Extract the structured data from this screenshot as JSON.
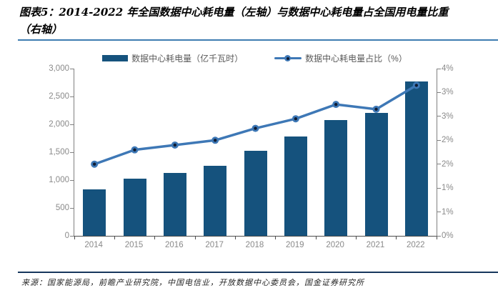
{
  "title": {
    "line1": "图表5：2014-2022 年全国数据中心耗电量（左轴）与数据中心耗电量占全国用电量比重",
    "line2": "（右轴）"
  },
  "legend": [
    {
      "swatch": "bar-swatch",
      "label": "数据中心耗电量（亿千瓦时）",
      "color": "#15527D"
    },
    {
      "swatch": "line-swatch",
      "label": "数据中心耗电量占比（%）",
      "color": "#3E78B6"
    }
  ],
  "source": "来源：国家能源局，前瞻产业研究院，中国电信业，开放数据中心委员会，国金证券研究所",
  "colors": {
    "bar": "#15527D",
    "line": "#3E78B6",
    "marker_center": "#0F1C33",
    "title_rule": "#3E7CB1",
    "footer_rule": "#17375D",
    "axis_text": "#8a8a8a"
  },
  "chart_data": {
    "type": "bar",
    "subtype": "bar+line dual axis",
    "categories": [
      "2014",
      "2015",
      "2016",
      "2017",
      "2018",
      "2019",
      "2020",
      "2021",
      "2022"
    ],
    "series": [
      {
        "name": "数据中心耗电量（亿千瓦时）",
        "type": "bar",
        "axis": "left",
        "values": [
          830,
          1020,
          1130,
          1260,
          1530,
          1780,
          2080,
          2200,
          2770
        ]
      },
      {
        "name": "数据中心耗电量占比（%）",
        "type": "line",
        "axis": "right",
        "values": [
          1.5,
          1.8,
          1.9,
          2.0,
          2.25,
          2.45,
          2.75,
          2.65,
          3.15
        ]
      }
    ],
    "left_axis": {
      "min": 0,
      "max": 3000,
      "tick_step": 500,
      "tick_labels": [
        "0",
        "500",
        "1,000",
        "1,500",
        "2,000",
        "2,500",
        "3,000"
      ]
    },
    "right_axis": {
      "min": 0,
      "max": 3.5,
      "tick_step": 0.5,
      "tick_labels": [
        "0%",
        "1%",
        "1%",
        "2%",
        "2%",
        "3%",
        "3%",
        "4%"
      ]
    },
    "grid": false,
    "legend_position": "top"
  }
}
